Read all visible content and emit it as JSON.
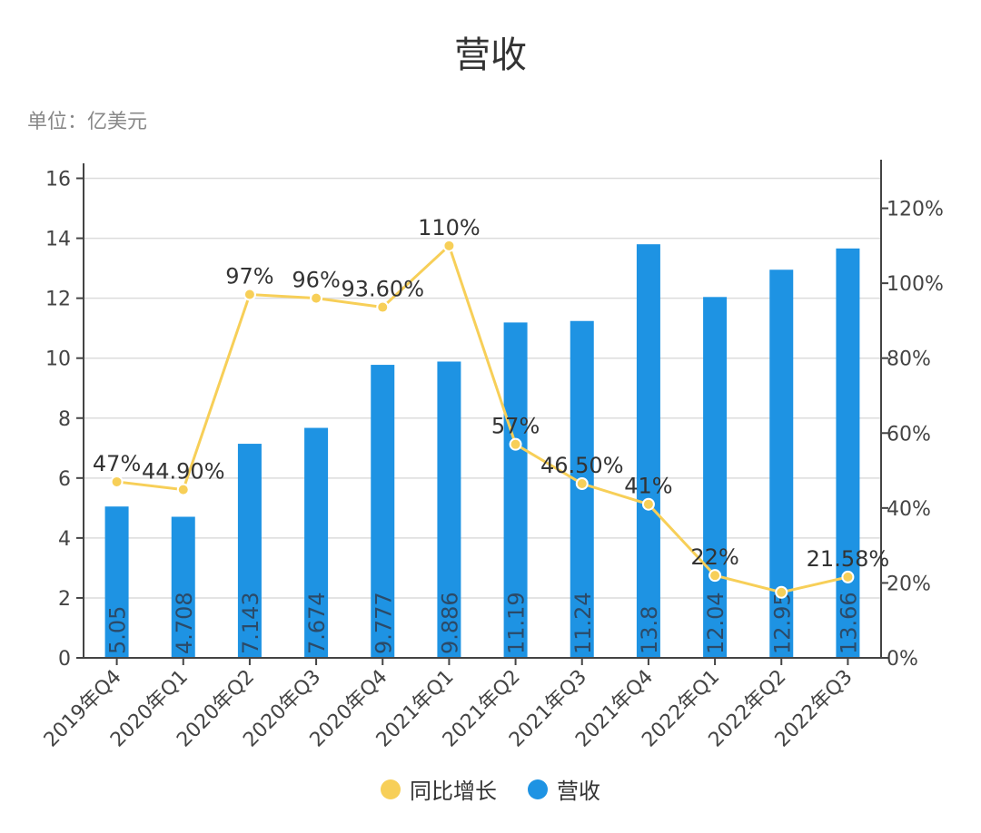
{
  "chart_data": {
    "type": "bar",
    "title": "营收",
    "unit_label": "单位：亿美元",
    "categories": [
      "2019年Q4",
      "2020年Q1",
      "2020年Q2",
      "2020年Q3",
      "2020年Q4",
      "2021年Q1",
      "2021年Q2",
      "2021年Q3",
      "2021年Q4",
      "2022年Q1",
      "2022年Q2",
      "2022年Q3"
    ],
    "series": [
      {
        "name": "营收",
        "kind": "bar",
        "axis": "left",
        "color": "#1e93e3",
        "values": [
          5.05,
          4.708,
          7.143,
          7.674,
          9.777,
          9.886,
          11.19,
          11.24,
          13.8,
          12.04,
          12.95,
          13.66
        ],
        "labels": [
          "5.05",
          "4.708",
          "7.143",
          "7.674",
          "9.777",
          "9.886",
          "11.19",
          "11.24",
          "13.8",
          "12.04",
          "12.95",
          "13.66"
        ]
      },
      {
        "name": "同比增长",
        "kind": "line",
        "axis": "right",
        "color": "#f7cf58",
        "values": [
          47,
          44.9,
          97,
          96,
          93.6,
          110,
          57,
          46.5,
          41,
          22,
          17.5,
          21.58
        ],
        "labels": [
          "47%",
          "44.90%",
          "97%",
          "96%",
          "93.60%",
          "110%",
          "57%",
          "46.50%",
          "41%",
          "22%",
          "",
          "21.58%"
        ]
      }
    ],
    "y_left": {
      "min": 0,
      "max": 16.5,
      "ticks": [
        "0",
        "2",
        "4",
        "6",
        "8",
        "10",
        "12",
        "14",
        "16"
      ]
    },
    "y_right": {
      "min": 0,
      "max": 132,
      "ticks": [
        "0%",
        "20%",
        "40%",
        "60%",
        "80%",
        "100%",
        "120%"
      ]
    },
    "grid": true,
    "legend_position": "bottom"
  }
}
